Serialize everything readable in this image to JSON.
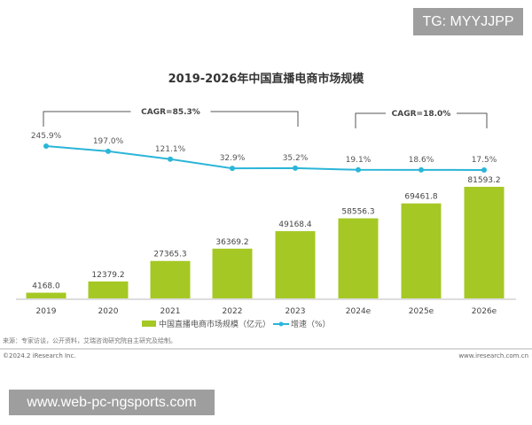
{
  "chart_data": {
    "type": "bar+line",
    "title": "2019-2026年中国直播电商市场规模",
    "categories": [
      "2019",
      "2020",
      "2021",
      "2022",
      "2023",
      "2024e",
      "2025e",
      "2026e"
    ],
    "series": [
      {
        "name": "中国直播电商市场规模（亿元）",
        "type": "bar",
        "color": "#a5c825",
        "values": [
          4168.0,
          12379.2,
          27365.3,
          36369.2,
          49168.4,
          58556.3,
          69461.8,
          81593.2
        ],
        "labels": [
          "4168.0",
          "12379.2",
          "27365.3",
          "36369.2",
          "49168.4",
          "58556.3",
          "69461.8",
          "81593.2"
        ]
      },
      {
        "name": "增速（%）",
        "type": "line",
        "color": "#2bb5d8",
        "values": [
          245.9,
          197.0,
          121.1,
          32.9,
          35.2,
          19.1,
          18.6,
          17.5
        ],
        "labels": [
          "245.9%",
          "197.0%",
          "121.1%",
          "32.9%",
          "35.2%",
          "19.1%",
          "18.6%",
          "17.5%"
        ]
      }
    ],
    "annotations": [
      {
        "text": "CAGR=85.3%",
        "from": "2019",
        "to": "2023"
      },
      {
        "text": "CAGR=18.0%",
        "from": "2024e",
        "to": "2026e"
      }
    ],
    "grid": false,
    "legend": "bottom"
  },
  "footer": {
    "source": "来源：专家访谈，公开资料，艾瑞咨询研究院自主研究及绘制。",
    "copyright": "©2024.2 iResearch Inc.",
    "website": "www.iresearch.com.cn"
  },
  "watermarks": {
    "top": "TG: MYYJJPP",
    "bottom": "www.web-pc-ngsports.com"
  }
}
